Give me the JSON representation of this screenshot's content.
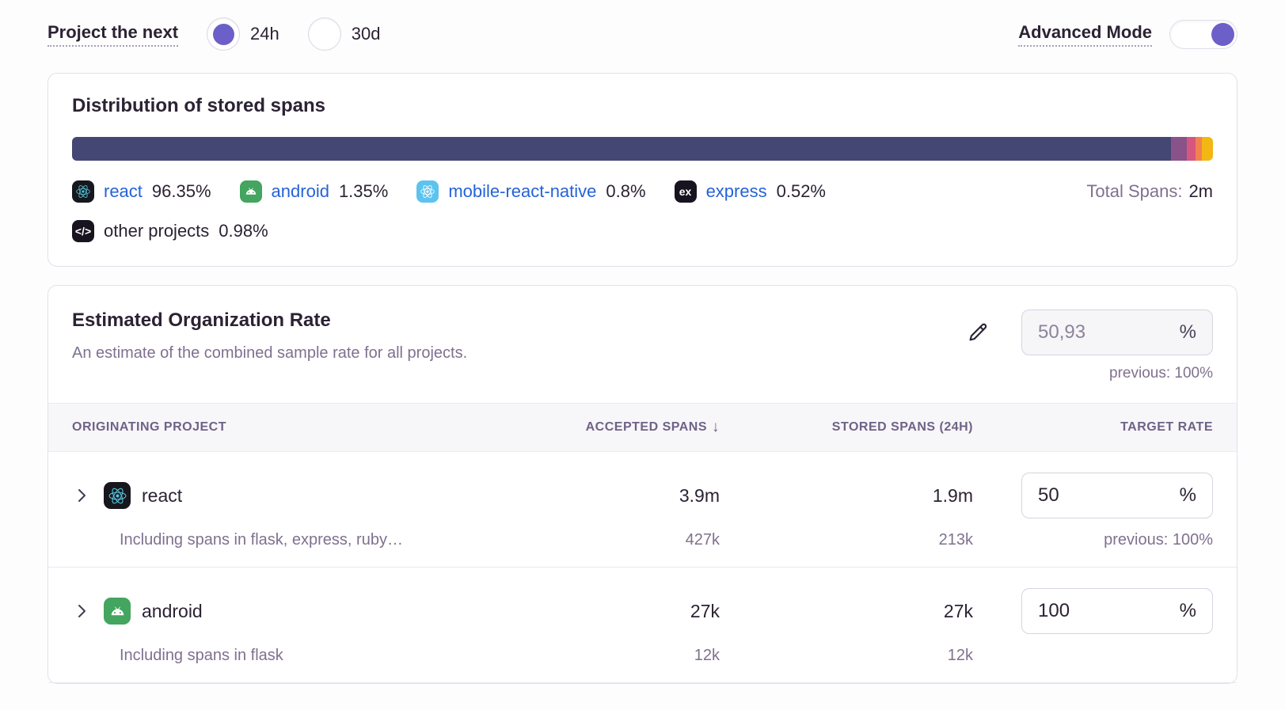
{
  "colors": {
    "accent": "#6C5FC7",
    "link": "#2562D9"
  },
  "topbar": {
    "project_next_label": "Project the next",
    "options": [
      {
        "label": "24h",
        "selected": true
      },
      {
        "label": "30d",
        "selected": false
      }
    ],
    "advanced_mode_label": "Advanced Mode",
    "advanced_mode_on": true
  },
  "distribution": {
    "title": "Distribution of stored spans",
    "total_label": "Total Spans:",
    "total_value": "2m",
    "segments": [
      {
        "name": "react",
        "pct": 96.35,
        "color": "#444674"
      },
      {
        "name": "android",
        "pct": 1.35,
        "color": "#895289"
      },
      {
        "name": "mobile-react-native",
        "pct": 0.8,
        "color": "#d6567f"
      },
      {
        "name": "express",
        "pct": 0.52,
        "color": "#f38150"
      },
      {
        "name": "other projects",
        "pct": 0.98,
        "color": "#f2b712"
      }
    ],
    "legend": [
      {
        "name": "react",
        "pct": "96.35%"
      },
      {
        "name": "android",
        "pct": "1.35%"
      },
      {
        "name": "mobile-react-native",
        "pct": "0.8%"
      },
      {
        "name": "express",
        "pct": "0.52%"
      },
      {
        "name": "other projects",
        "pct": "0.98%"
      }
    ]
  },
  "org_rate": {
    "title": "Estimated Organization Rate",
    "subtitle": "An estimate of the combined sample rate for all projects.",
    "value": "50,93",
    "unit": "%",
    "previous": "previous: 100%"
  },
  "table": {
    "columns": [
      "ORIGINATING PROJECT",
      "ACCEPTED SPANS",
      "STORED SPANS (24H)",
      "TARGET RATE"
    ],
    "sort_arrow": "↓",
    "rows": [
      {
        "project": "react",
        "note": "Including spans in flask, express, ruby…",
        "accepted": "3.9m",
        "accepted_sub": "427k",
        "stored": "1.9m",
        "stored_sub": "213k",
        "rate": "50",
        "rate_unit": "%",
        "previous": "previous: 100%"
      },
      {
        "project": "android",
        "note": "Including spans in flask",
        "accepted": "27k",
        "accepted_sub": "12k",
        "stored": "27k",
        "stored_sub": "12k",
        "rate": "100",
        "rate_unit": "%",
        "previous": ""
      }
    ]
  }
}
